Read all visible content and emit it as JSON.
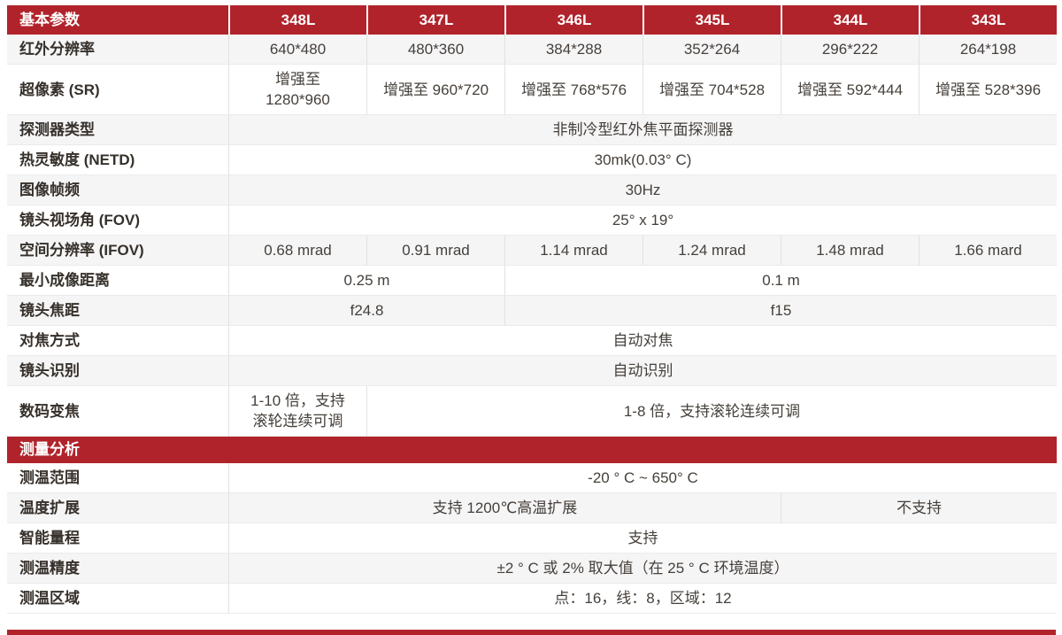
{
  "colors": {
    "header_red": "#b1232b",
    "row_stripe": "#f5f5f6",
    "vertical_border": "#e2e2e2",
    "horizontal_border": "#ebebeb"
  },
  "table": {
    "columns": [
      "348L",
      "347L",
      "346L",
      "345L",
      "344L",
      "343L"
    ],
    "sections": [
      {
        "title": "基本参数",
        "rows": [
          {
            "label": "红外分辨率",
            "cells": [
              {
                "text": "640*480",
                "span": 1
              },
              {
                "text": "480*360",
                "span": 1
              },
              {
                "text": "384*288",
                "span": 1
              },
              {
                "text": "352*264",
                "span": 1
              },
              {
                "text": "296*222",
                "span": 1
              },
              {
                "text": "264*198",
                "span": 1
              }
            ]
          },
          {
            "label": "超像素 (SR)",
            "cells": [
              {
                "text": "增强至\n1280*960",
                "span": 1
              },
              {
                "text": "增强至 960*720",
                "span": 1
              },
              {
                "text": "增强至 768*576",
                "span": 1
              },
              {
                "text": "增强至 704*528",
                "span": 1
              },
              {
                "text": "增强至 592*444",
                "span": 1
              },
              {
                "text": "增强至 528*396",
                "span": 1
              }
            ]
          },
          {
            "label": "探测器类型",
            "cells": [
              {
                "text": "非制冷型红外焦平面探测器",
                "span": 6
              }
            ]
          },
          {
            "label": "热灵敏度 (NETD)",
            "cells": [
              {
                "text": "30mk(0.03° C)",
                "span": 6
              }
            ]
          },
          {
            "label": "图像帧频",
            "cells": [
              {
                "text": "30Hz",
                "span": 6
              }
            ]
          },
          {
            "label": "镜头视场角 (FOV)",
            "cells": [
              {
                "text": "25° x 19°",
                "span": 6
              }
            ]
          },
          {
            "label": "空间分辨率 (IFOV)",
            "cells": [
              {
                "text": "0.68 mrad",
                "span": 1
              },
              {
                "text": "0.91 mrad",
                "span": 1
              },
              {
                "text": "1.14 mrad",
                "span": 1
              },
              {
                "text": "1.24 mrad",
                "span": 1
              },
              {
                "text": "1.48 mrad",
                "span": 1
              },
              {
                "text": "1.66 mard",
                "span": 1
              }
            ]
          },
          {
            "label": "最小成像距离",
            "cells": [
              {
                "text": "0.25 m",
                "span": 2
              },
              {
                "text": "0.1 m",
                "span": 4
              }
            ]
          },
          {
            "label": "镜头焦距",
            "cells": [
              {
                "text": "f24.8",
                "span": 2
              },
              {
                "text": "f15",
                "span": 4
              }
            ]
          },
          {
            "label": "对焦方式",
            "cells": [
              {
                "text": "自动对焦",
                "span": 6
              }
            ]
          },
          {
            "label": "镜头识别",
            "cells": [
              {
                "text": "自动识别",
                "span": 6
              }
            ]
          },
          {
            "label": "数码变焦",
            "cells": [
              {
                "text": "1-10 倍，支持\n滚轮连续可调",
                "span": 1
              },
              {
                "text": "1-8 倍，支持滚轮连续可调",
                "span": 5
              }
            ]
          }
        ]
      },
      {
        "title": "测量分析",
        "rows": [
          {
            "label": "测温范围",
            "cells": [
              {
                "text": "-20 ° C ~ 650° C",
                "span": 6
              }
            ]
          },
          {
            "label": "温度扩展",
            "cells": [
              {
                "text": "支持 1200℃高温扩展",
                "span": 4
              },
              {
                "text": "不支持",
                "span": 2
              }
            ]
          },
          {
            "label": "智能量程",
            "cells": [
              {
                "text": "支持",
                "span": 6
              }
            ]
          },
          {
            "label": "测温精度",
            "cells": [
              {
                "text": "±2 ° C 或 2% 取大值（在 25 ° C 环境温度）",
                "span": 6
              }
            ]
          },
          {
            "label": "测温区域",
            "cells": [
              {
                "text": "点：16，线：8，区域：12",
                "span": 6
              }
            ]
          }
        ]
      }
    ]
  }
}
